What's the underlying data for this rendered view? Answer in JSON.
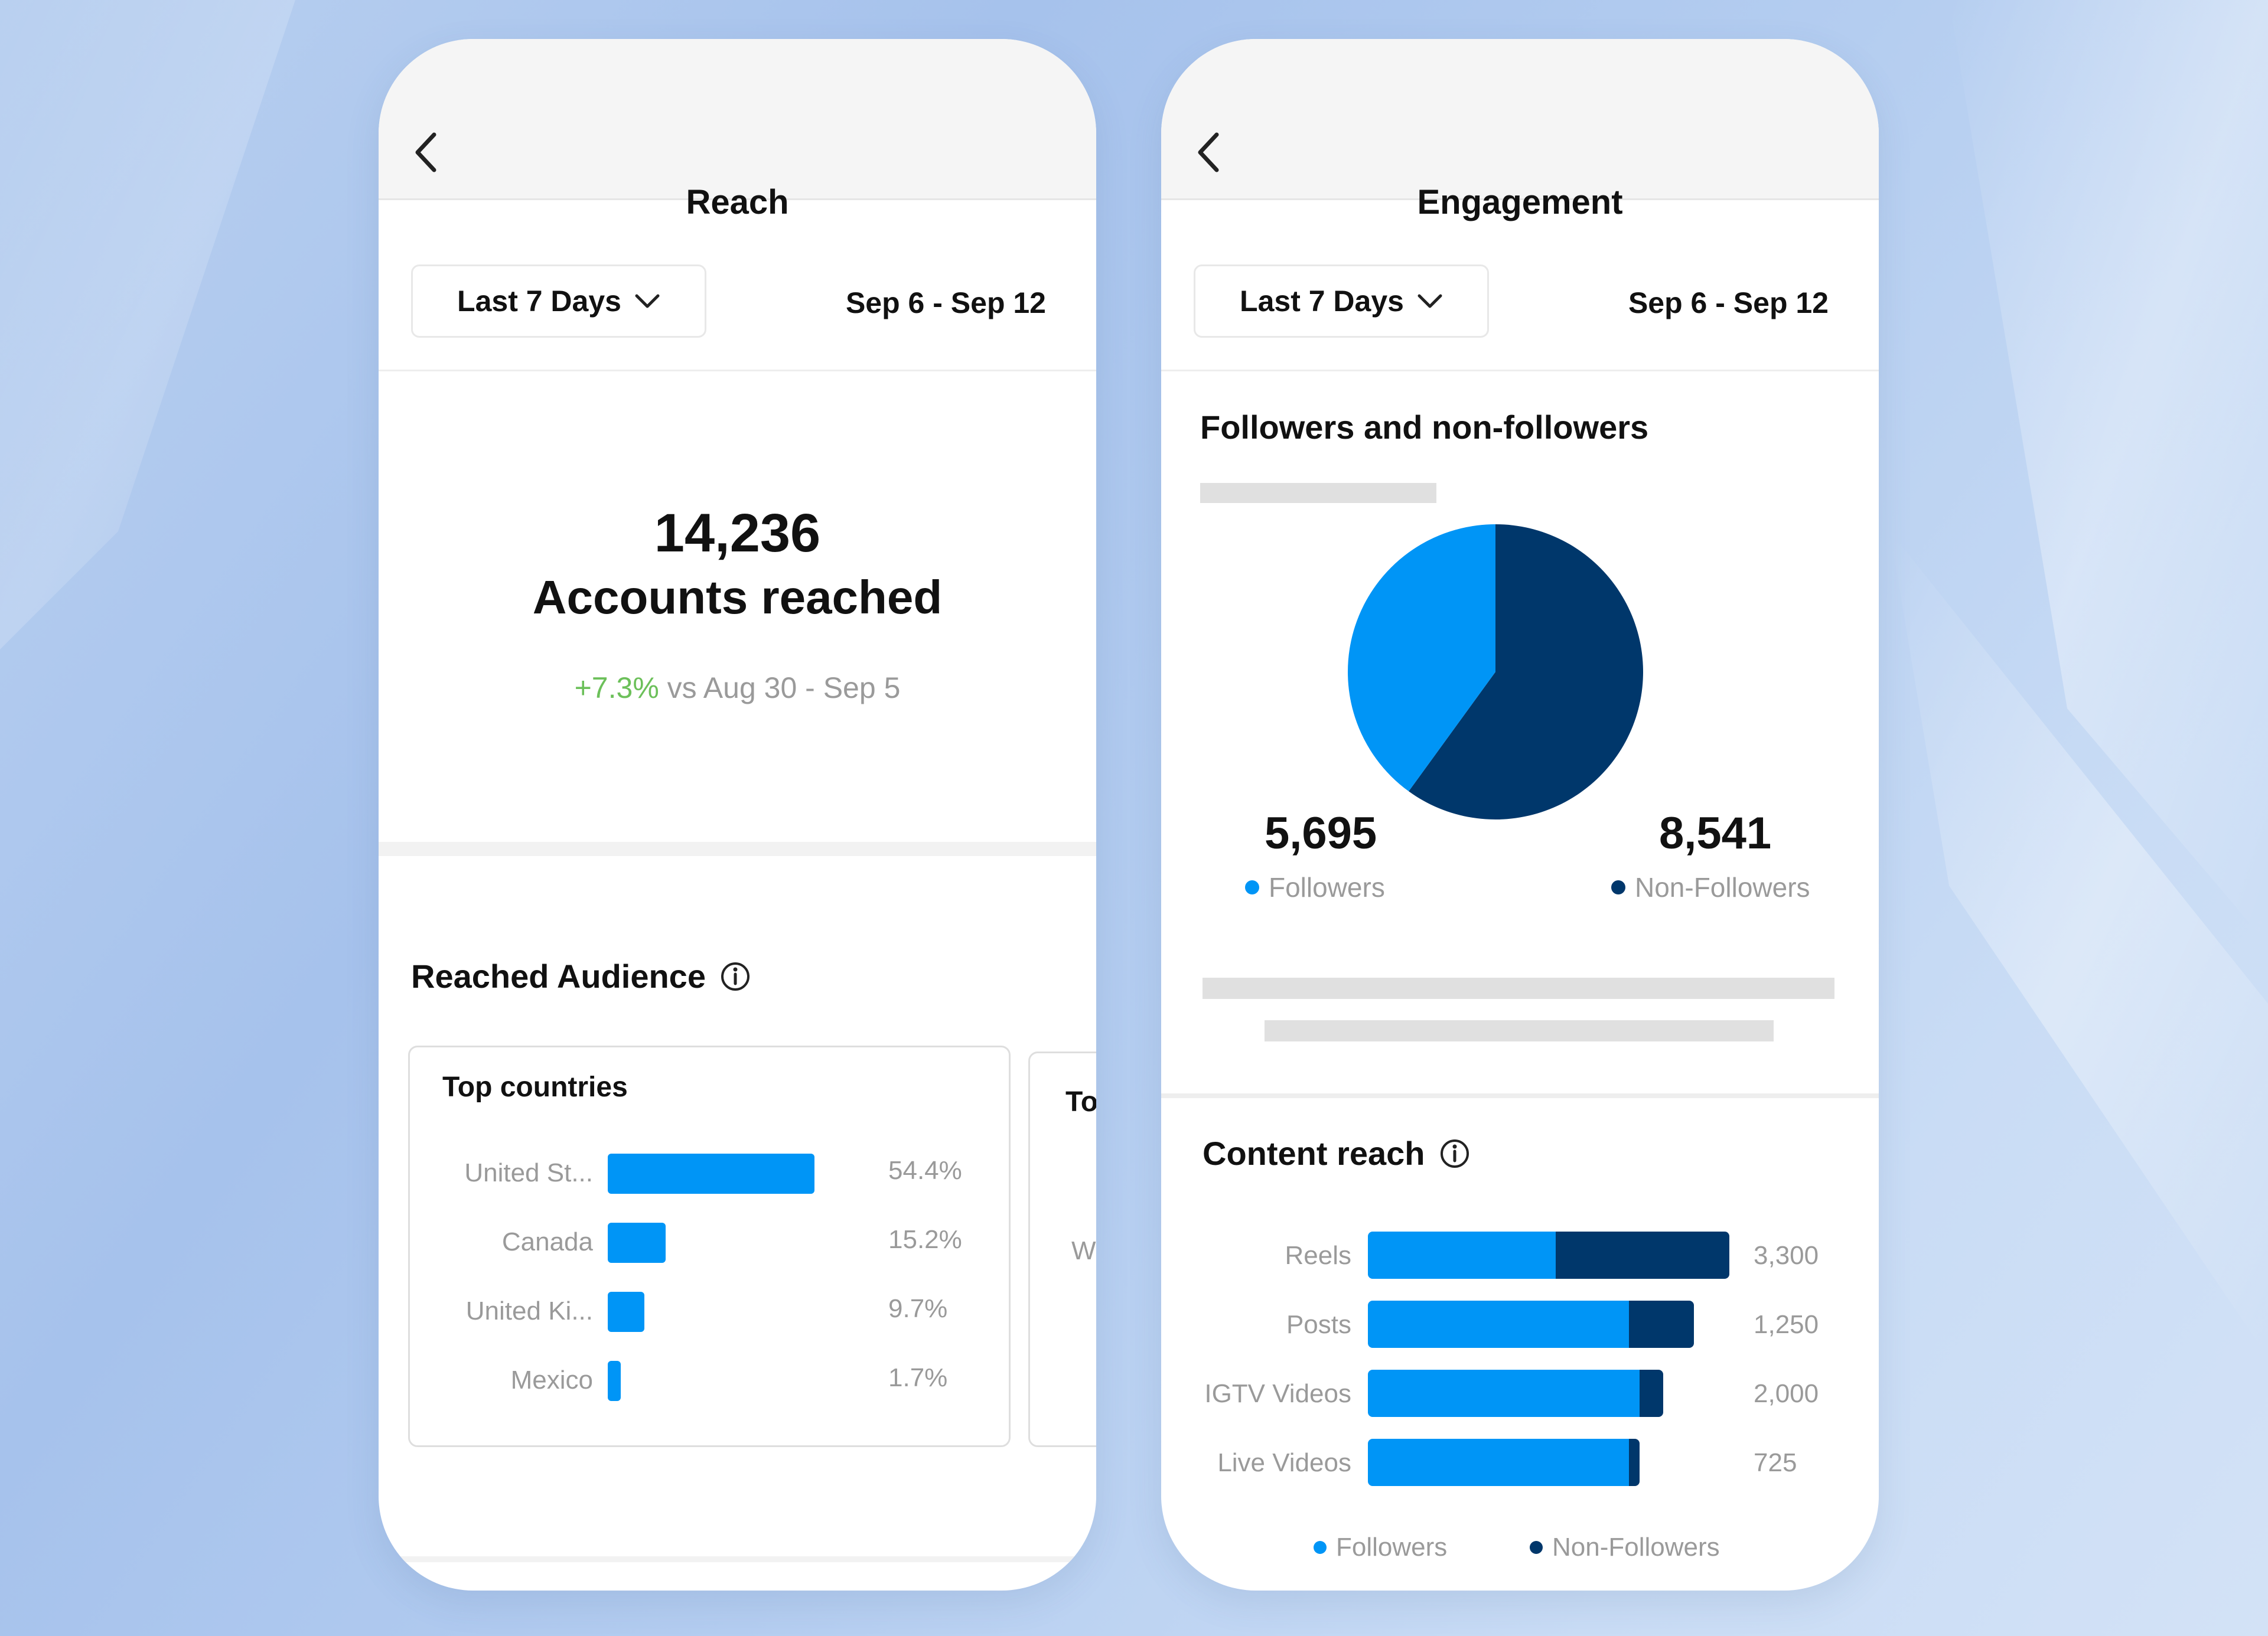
{
  "colors": {
    "followers": "#0095f6",
    "non_followers": "#00376b",
    "positive": "#6cc05a",
    "muted": "#9a9a9a"
  },
  "reach_screen": {
    "title": "Reach",
    "back_icon": "chevron-left-icon",
    "dropdown_label": "Last 7 Days",
    "date_range": "Sep 6 - Sep 12",
    "total": "14,236",
    "total_label": "Accounts reached",
    "change": "+7.3%",
    "change_suffix": " vs Aug 30 - Sep 5",
    "audience_title": "Reached Audience",
    "top_countries": {
      "title": "Top countries",
      "rows": [
        {
          "label": "United St...",
          "value": "54.4%",
          "pct": 54.4
        },
        {
          "label": "Canada",
          "value": "15.2%",
          "pct": 15.2
        },
        {
          "label": "United Ki...",
          "value": "9.7%",
          "pct": 9.7
        },
        {
          "label": "Mexico",
          "value": "1.7%",
          "pct": 1.7
        }
      ]
    },
    "next_card": {
      "title_fragment": "To",
      "row_fragment": "W"
    }
  },
  "engagement_screen": {
    "title": "Engagement",
    "back_icon": "chevron-left-icon",
    "dropdown_label": "Last 7 Days",
    "date_range": "Sep 6 - Sep 12",
    "pie_title": "Followers and non-followers",
    "followers_value": "5,695",
    "followers_label": "Followers",
    "non_followers_value": "8,541",
    "non_followers_label": "Non-Followers",
    "content_reach_title": "Content reach",
    "legend_followers": "Followers",
    "legend_non_followers": "Non-Followers"
  },
  "chart_data": [
    {
      "type": "pie",
      "title": "Followers and non-followers",
      "categories": [
        "Followers",
        "Non-Followers"
      ],
      "values": [
        5695,
        8541
      ]
    },
    {
      "type": "bar",
      "title": "Content reach",
      "orientation": "horizontal",
      "stacked": true,
      "categories": [
        "Reels",
        "Posts",
        "IGTV Videos",
        "Live Videos"
      ],
      "totals": [
        "3,300",
        "1,250",
        "2,000",
        "725"
      ],
      "series": [
        {
          "name": "Followers",
          "share": [
            0.52,
            0.8,
            0.92,
            0.96
          ]
        },
        {
          "name": "Non-Followers",
          "share": [
            0.48,
            0.2,
            0.08,
            0.04
          ]
        }
      ],
      "legend": "bottom"
    }
  ]
}
